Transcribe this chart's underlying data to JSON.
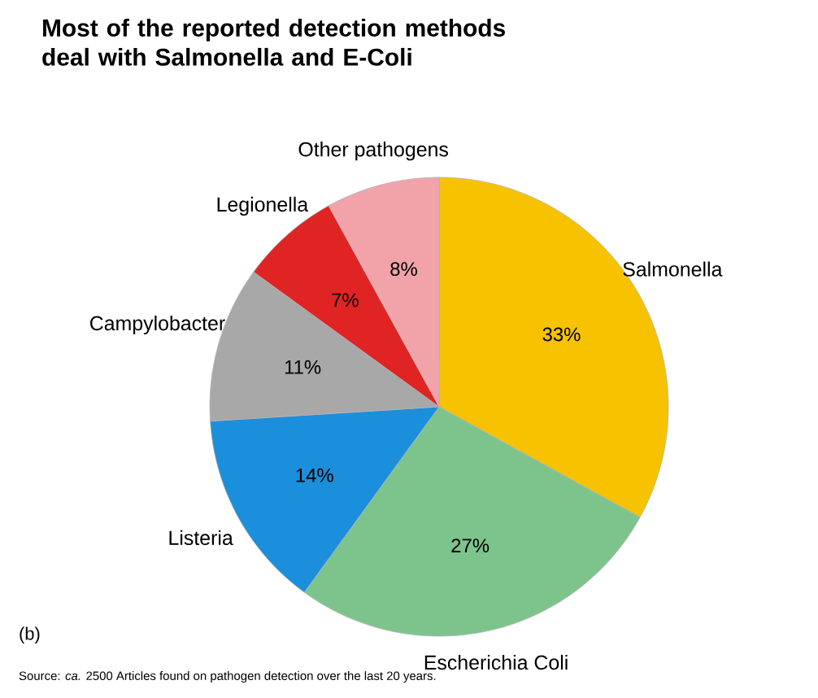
{
  "chart_data": {
    "type": "pie",
    "title": "Most of the reported detection methods deal with Salmonella and E-Coli",
    "categories": [
      "Salmonella",
      "Escherichia Coli",
      "Listeria",
      "Campylobacter",
      "Legionella",
      "Other pathogens"
    ],
    "values": [
      33,
      27,
      14,
      11,
      7,
      8
    ],
    "colors": [
      "#f7c200",
      "#7dc48c",
      "#1b8fdc",
      "#a8a8a8",
      "#e02424",
      "#f2a3aa"
    ],
    "value_labels": [
      "33%",
      "27%",
      "14%",
      "11%",
      "7%",
      "8%"
    ],
    "annotations": [
      "(b)",
      "Source: *ca.* 2500 Articles found on pathogen detection over the last 20 years."
    ]
  }
}
